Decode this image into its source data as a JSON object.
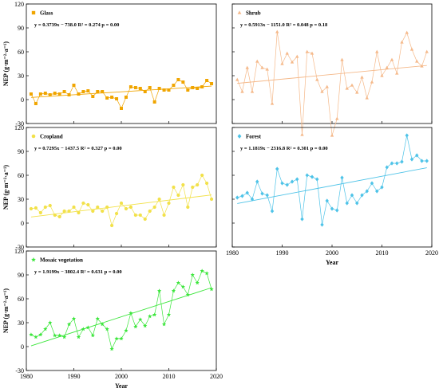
{
  "y_label": "NEP (g·m⁻²·a⁻¹)",
  "x_label": "Year",
  "chart_data": [
    {
      "type": "line",
      "name": "Glass",
      "equation": "y = 0.3739x − 738.0   R² = 0.274   p = 0.00",
      "color": "#f0a500",
      "marker": "square",
      "xlim": [
        1980,
        2020
      ],
      "ylim": [
        -30,
        120
      ],
      "yticks": [
        -30,
        0,
        30,
        60,
        90,
        120
      ],
      "xticks": [
        1980,
        1990,
        2000,
        2010,
        2020
      ],
      "trend": {
        "slope": 0.3739,
        "intercept": -738.0
      },
      "x": [
        1981,
        1982,
        1983,
        1984,
        1985,
        1986,
        1987,
        1988,
        1989,
        1990,
        1991,
        1992,
        1993,
        1994,
        1995,
        1996,
        1997,
        1998,
        1999,
        2000,
        2001,
        2002,
        2003,
        2004,
        2005,
        2006,
        2007,
        2008,
        2009,
        2010,
        2011,
        2012,
        2013,
        2014,
        2015,
        2016,
        2017,
        2018,
        2019
      ],
      "values": [
        7,
        -5,
        7,
        8,
        6,
        8,
        7,
        10,
        6,
        18,
        7,
        10,
        11,
        4,
        10,
        10,
        2,
        3,
        1,
        -11,
        3,
        16,
        15,
        14,
        10,
        15,
        -3,
        14,
        12,
        12,
        18,
        25,
        22,
        12,
        15,
        14,
        16,
        24,
        20
      ]
    },
    {
      "type": "line",
      "name": "Shrub",
      "equation": "y = 0.5913x − 1151.0   R² = 0.048   p = 0.18",
      "color": "#f5b98a",
      "marker": "triangle",
      "xlim": [
        1980,
        2020
      ],
      "ylim": [
        -30,
        120
      ],
      "yticks": [
        -30,
        0,
        30,
        60,
        90,
        120
      ],
      "xticks": [
        1980,
        1990,
        2000,
        2010,
        2020
      ],
      "trend": {
        "slope": 0.5913,
        "intercept": -1151.0
      },
      "x": [
        1981,
        1982,
        1983,
        1984,
        1985,
        1986,
        1987,
        1988,
        1989,
        1990,
        1991,
        1992,
        1993,
        1994,
        1995,
        1996,
        1997,
        1998,
        1999,
        2000,
        2001,
        2002,
        2003,
        2004,
        2005,
        2006,
        2007,
        2008,
        2009,
        2010,
        2011,
        2012,
        2013,
        2014,
        2015,
        2016,
        2017,
        2018,
        2019
      ],
      "values": [
        25,
        10,
        40,
        10,
        48,
        40,
        38,
        -5,
        85,
        45,
        58,
        47,
        54,
        -44,
        60,
        58,
        25,
        10,
        16,
        -45,
        -24,
        50,
        14,
        18,
        9,
        28,
        2,
        22,
        60,
        30,
        40,
        50,
        33,
        72,
        84,
        63,
        48,
        42,
        60
      ]
    },
    {
      "type": "line",
      "name": "Cropland",
      "equation": "y = 0.7295x − 1437.5   R² = 0.327   p = 0.00",
      "color": "#f2e14a",
      "marker": "circle",
      "xlim": [
        1980,
        2020
      ],
      "ylim": [
        -30,
        120
      ],
      "yticks": [
        -30,
        0,
        30,
        60,
        90,
        120
      ],
      "xticks": [
        1980,
        1990,
        2000,
        2010,
        2020
      ],
      "trend": {
        "slope": 0.7295,
        "intercept": -1437.5
      },
      "x": [
        1981,
        1982,
        1983,
        1984,
        1985,
        1986,
        1987,
        1988,
        1989,
        1990,
        1991,
        1992,
        1993,
        1994,
        1995,
        1996,
        1997,
        1998,
        1999,
        2000,
        2001,
        2002,
        2003,
        2004,
        2005,
        2006,
        2007,
        2008,
        2009,
        2010,
        2011,
        2012,
        2013,
        2014,
        2015,
        2016,
        2017,
        2018,
        2019
      ],
      "values": [
        18,
        19,
        13,
        20,
        22,
        10,
        8,
        15,
        15,
        20,
        13,
        25,
        23,
        15,
        20,
        15,
        20,
        -3,
        12,
        25,
        18,
        20,
        10,
        10,
        5,
        15,
        20,
        30,
        10,
        25,
        45,
        35,
        48,
        20,
        45,
        48,
        60,
        50,
        30
      ]
    },
    {
      "type": "line",
      "name": "Forest",
      "equation": "y = 1.1819x − 2316.8   R² = 0.301   p = 0.00",
      "color": "#4ec3e8",
      "marker": "diamond",
      "xlim": [
        1980,
        2020
      ],
      "ylim": [
        -30,
        120
      ],
      "yticks": [
        -30,
        0,
        30,
        60,
        90,
        120
      ],
      "xticks": [
        1980,
        1990,
        2000,
        2010,
        2020
      ],
      "trend": {
        "slope": 1.1819,
        "intercept": -2316.8
      },
      "x": [
        1981,
        1982,
        1983,
        1984,
        1985,
        1986,
        1987,
        1988,
        1989,
        1990,
        1991,
        1992,
        1993,
        1994,
        1995,
        1996,
        1997,
        1998,
        1999,
        2000,
        2001,
        2002,
        2003,
        2004,
        2005,
        2006,
        2007,
        2008,
        2009,
        2010,
        2011,
        2012,
        2013,
        2014,
        2015,
        2016,
        2017,
        2018,
        2019
      ],
      "values": [
        32,
        34,
        38,
        30,
        52,
        37,
        35,
        15,
        68,
        50,
        48,
        52,
        55,
        5,
        60,
        58,
        55,
        -2,
        28,
        18,
        16,
        57,
        25,
        35,
        25,
        35,
        40,
        50,
        40,
        45,
        70,
        75,
        75,
        77,
        110,
        80,
        85,
        78,
        78
      ]
    },
    {
      "type": "line",
      "name": "Mosaic vegetation",
      "equation": "y = 1.9199x − 3802.4   R² = 0.631   p = 0.00",
      "color": "#3ce63c",
      "marker": "star",
      "xlim": [
        1980,
        2020
      ],
      "ylim": [
        -30,
        120
      ],
      "yticks": [
        -30,
        0,
        30,
        60,
        90,
        120
      ],
      "xticks": [
        1980,
        1990,
        2000,
        2010,
        2020
      ],
      "trend": {
        "slope": 1.9199,
        "intercept": -3802.4
      },
      "x": [
        1981,
        1982,
        1983,
        1984,
        1985,
        1986,
        1987,
        1988,
        1989,
        1990,
        1991,
        1992,
        1993,
        1994,
        1995,
        1996,
        1997,
        1998,
        1999,
        2000,
        2001,
        2002,
        2003,
        2004,
        2005,
        2006,
        2007,
        2008,
        2009,
        2010,
        2011,
        2012,
        2013,
        2014,
        2015,
        2016,
        2017,
        2018,
        2019
      ],
      "values": [
        15,
        12,
        15,
        22,
        30,
        14,
        14,
        12,
        28,
        35,
        12,
        22,
        24,
        14,
        35,
        28,
        22,
        -3,
        10,
        10,
        20,
        42,
        25,
        34,
        26,
        38,
        40,
        70,
        28,
        40,
        70,
        80,
        75,
        65,
        90,
        80,
        95,
        92,
        72
      ]
    }
  ]
}
